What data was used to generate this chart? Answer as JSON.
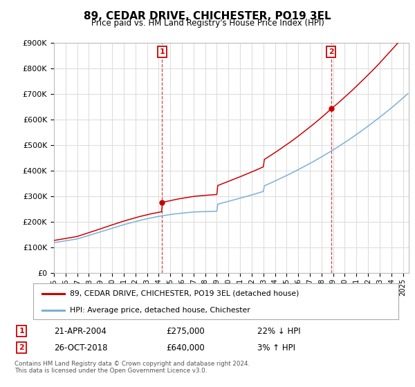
{
  "title": "89, CEDAR DRIVE, CHICHESTER, PO19 3EL",
  "subtitle": "Price paid vs. HM Land Registry's House Price Index (HPI)",
  "ylim": [
    0,
    900000
  ],
  "yticks": [
    0,
    100000,
    200000,
    300000,
    400000,
    500000,
    600000,
    700000,
    800000,
    900000
  ],
  "xlim_start": 1995.0,
  "xlim_end": 2025.5,
  "line1_color": "#cc0000",
  "line2_color": "#7ab0d4",
  "transaction1_x": 2004.3,
  "transaction1_y": 275000,
  "transaction2_x": 2018.82,
  "transaction2_y": 640000,
  "legend_label1": "89, CEDAR DRIVE, CHICHESTER, PO19 3EL (detached house)",
  "legend_label2": "HPI: Average price, detached house, Chichester",
  "annot1_date": "21-APR-2004",
  "annot1_price": "£275,000",
  "annot1_hpi": "22% ↓ HPI",
  "annot2_date": "26-OCT-2018",
  "annot2_price": "£640,000",
  "annot2_hpi": "3% ↑ HPI",
  "footer": "Contains HM Land Registry data © Crown copyright and database right 2024.\nThis data is licensed under the Open Government Licence v3.0.",
  "bg_color": "#ffffff",
  "plot_bg_color": "#ffffff",
  "grid_color": "#dddddd"
}
